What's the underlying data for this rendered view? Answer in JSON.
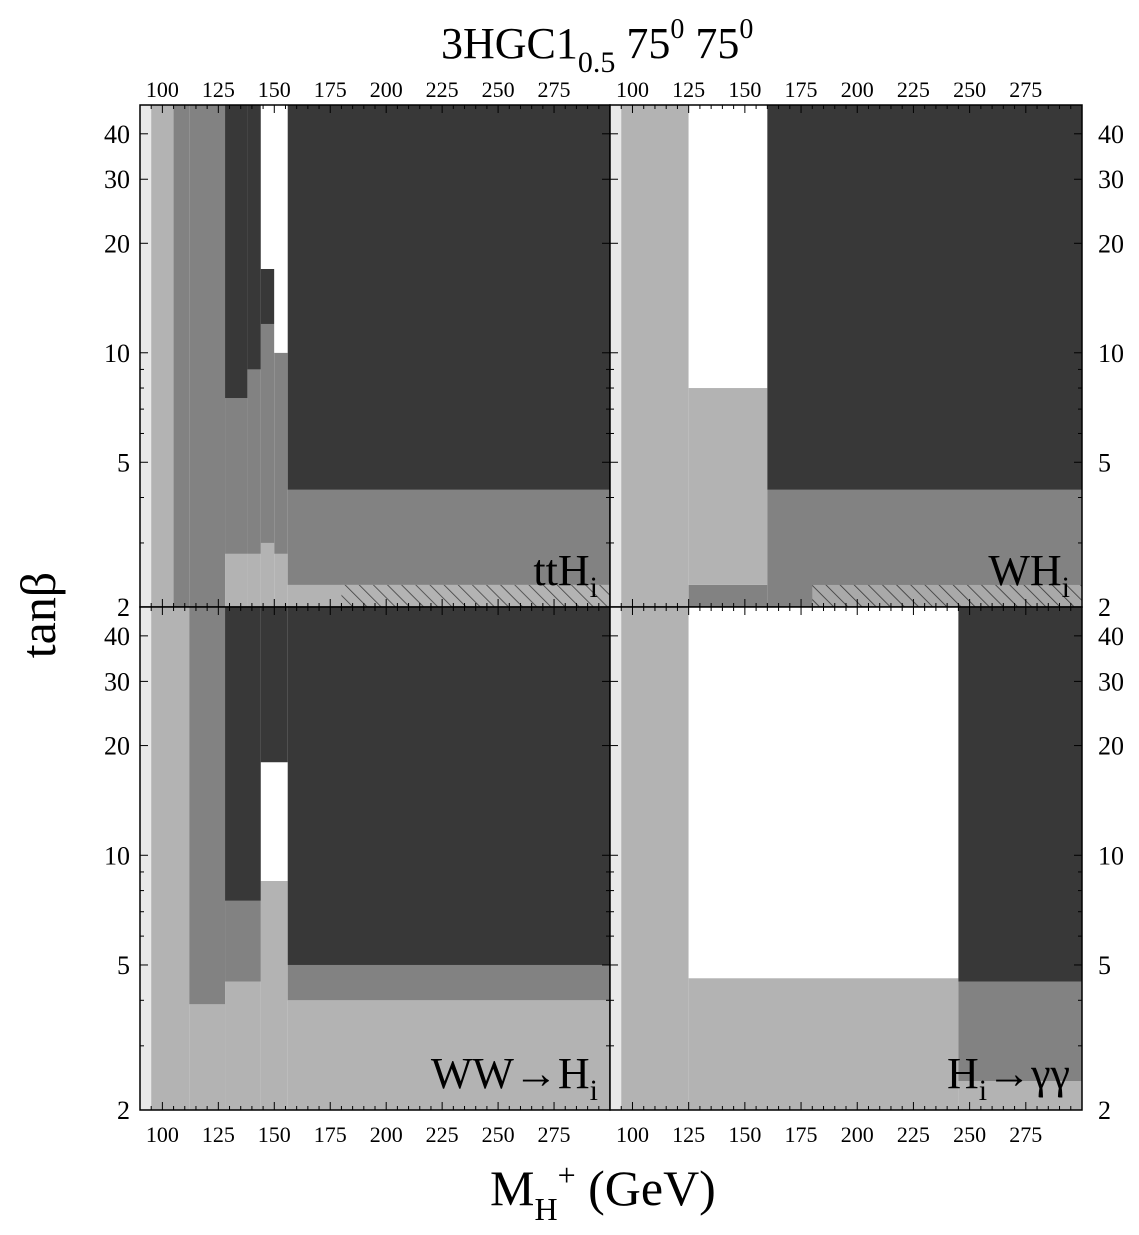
{
  "figure": {
    "title_main": "3HGC1",
    "title_sub": "0.5",
    "title_angle1": "75",
    "title_angle2": "75",
    "title_sup": "0",
    "xlabel_main": "M",
    "xlabel_sub": "H",
    "xlabel_sup": "+",
    "xlabel_unit": " (GeV)",
    "ylabel_main": "tan",
    "ylabel_greek": "β"
  },
  "colors": {
    "white": "#ffffff",
    "very_light": "#e9e9e9",
    "light": "#b3b3b3",
    "medium": "#828282",
    "dark": "#383838"
  },
  "chart_data": [
    {
      "type": "heatmap",
      "panel": "top-left",
      "label_main": "ttH",
      "label_sub": "i",
      "hatch": true,
      "xlim": [
        90,
        300
      ],
      "ylim": [
        2,
        48
      ],
      "yscale": "log",
      "xticks": [
        "100",
        "125",
        "150",
        "175",
        "200",
        "225",
        "250",
        "275"
      ],
      "yticks": [
        "2",
        "5",
        "10",
        "20",
        "30",
        "40"
      ],
      "columns": [
        {
          "x": [
            88,
            95
          ],
          "bands": [
            [
              2,
              48,
              "very_light"
            ]
          ]
        },
        {
          "x": [
            95,
            105
          ],
          "bands": [
            [
              2,
              48,
              "light"
            ]
          ]
        },
        {
          "x": [
            105,
            112
          ],
          "bands": [
            [
              2,
              48,
              "medium"
            ]
          ]
        },
        {
          "x": [
            112,
            128
          ],
          "bands": [
            [
              2,
              48,
              "medium"
            ]
          ]
        },
        {
          "x": [
            128,
            138
          ],
          "bands": [
            [
              2,
              2.8,
              "light"
            ],
            [
              2.8,
              7.5,
              "medium"
            ],
            [
              7.5,
              48,
              "dark"
            ]
          ]
        },
        {
          "x": [
            138,
            144
          ],
          "bands": [
            [
              2,
              2.8,
              "light"
            ],
            [
              2.8,
              9.0,
              "medium"
            ],
            [
              9.0,
              48,
              "dark"
            ]
          ]
        },
        {
          "x": [
            144,
            150
          ],
          "bands": [
            [
              2,
              3.0,
              "light"
            ],
            [
              3.0,
              12,
              "medium"
            ],
            [
              12,
              17,
              "dark"
            ],
            [
              17,
              48,
              "white"
            ]
          ]
        },
        {
          "x": [
            150,
            156
          ],
          "bands": [
            [
              2,
              2.8,
              "light"
            ],
            [
              2.8,
              10,
              "medium"
            ],
            [
              10,
              48,
              "white"
            ]
          ]
        },
        {
          "x": [
            156,
            300
          ],
          "bands": [
            [
              2,
              2.3,
              "light"
            ],
            [
              2.3,
              4.2,
              "medium"
            ],
            [
              4.2,
              48,
              "dark"
            ]
          ]
        }
      ]
    },
    {
      "type": "heatmap",
      "panel": "top-right",
      "label_main": "WH",
      "label_sub": "i",
      "hatch": true,
      "xlim": [
        90,
        300
      ],
      "ylim": [
        2,
        48
      ],
      "yscale": "log",
      "xticks": [
        "100",
        "125",
        "150",
        "175",
        "200",
        "225",
        "250",
        "275"
      ],
      "yticks": [
        "2",
        "5",
        "10",
        "20",
        "30",
        "40"
      ],
      "columns": [
        {
          "x": [
            88,
            95
          ],
          "bands": [
            [
              2,
              48,
              "very_light"
            ]
          ]
        },
        {
          "x": [
            95,
            125
          ],
          "bands": [
            [
              2,
              48,
              "light"
            ]
          ]
        },
        {
          "x": [
            125,
            160
          ],
          "bands": [
            [
              2,
              2.3,
              "medium"
            ],
            [
              2.3,
              8.0,
              "light"
            ],
            [
              8.0,
              48,
              "white"
            ]
          ]
        },
        {
          "x": [
            160,
            300
          ],
          "bands": [
            [
              2,
              4.2,
              "medium"
            ],
            [
              4.2,
              48,
              "dark"
            ]
          ]
        }
      ]
    },
    {
      "type": "heatmap",
      "panel": "bottom-left",
      "label_main": "WW→H",
      "label_sub": "i",
      "hatch": false,
      "xlim": [
        90,
        300
      ],
      "ylim": [
        2,
        48
      ],
      "yscale": "log",
      "xticks": [
        "100",
        "125",
        "150",
        "175",
        "200",
        "225",
        "250",
        "275"
      ],
      "yticks": [
        "2",
        "5",
        "10",
        "20",
        "30",
        "40"
      ],
      "columns": [
        {
          "x": [
            88,
            95
          ],
          "bands": [
            [
              2,
              48,
              "very_light"
            ]
          ]
        },
        {
          "x": [
            95,
            112
          ],
          "bands": [
            [
              2,
              48,
              "light"
            ]
          ]
        },
        {
          "x": [
            112,
            128
          ],
          "bands": [
            [
              2,
              3.9,
              "light"
            ],
            [
              3.9,
              48,
              "medium"
            ]
          ]
        },
        {
          "x": [
            128,
            144
          ],
          "bands": [
            [
              2,
              4.5,
              "light"
            ],
            [
              4.5,
              7.5,
              "medium"
            ],
            [
              7.5,
              48,
              "dark"
            ]
          ]
        },
        {
          "x": [
            144,
            156
          ],
          "bands": [
            [
              2,
              8.5,
              "light"
            ],
            [
              8.5,
              18,
              "white"
            ],
            [
              18,
              48,
              "dark"
            ]
          ]
        },
        {
          "x": [
            156,
            300
          ],
          "bands": [
            [
              2,
              4.0,
              "light"
            ],
            [
              4.0,
              5.0,
              "medium"
            ],
            [
              5.0,
              48,
              "dark"
            ]
          ]
        }
      ]
    },
    {
      "type": "heatmap",
      "panel": "bottom-right",
      "label_main": "H",
      "label_sub": "i",
      "label_tail": "→γγ",
      "hatch": false,
      "xlim": [
        90,
        300
      ],
      "ylim": [
        2,
        48
      ],
      "yscale": "log",
      "xticks": [
        "100",
        "125",
        "150",
        "175",
        "200",
        "225",
        "250",
        "275"
      ],
      "yticks": [
        "2",
        "5",
        "10",
        "20",
        "30",
        "40"
      ],
      "columns": [
        {
          "x": [
            88,
            95
          ],
          "bands": [
            [
              2,
              48,
              "very_light"
            ]
          ]
        },
        {
          "x": [
            95,
            125
          ],
          "bands": [
            [
              2,
              48,
              "light"
            ]
          ]
        },
        {
          "x": [
            125,
            245
          ],
          "bands": [
            [
              2,
              4.6,
              "light"
            ],
            [
              4.6,
              48,
              "white"
            ]
          ]
        },
        {
          "x": [
            245,
            300
          ],
          "bands": [
            [
              2,
              2.4,
              "light"
            ],
            [
              2.4,
              4.5,
              "medium"
            ],
            [
              4.5,
              48,
              "dark"
            ]
          ]
        }
      ]
    }
  ]
}
